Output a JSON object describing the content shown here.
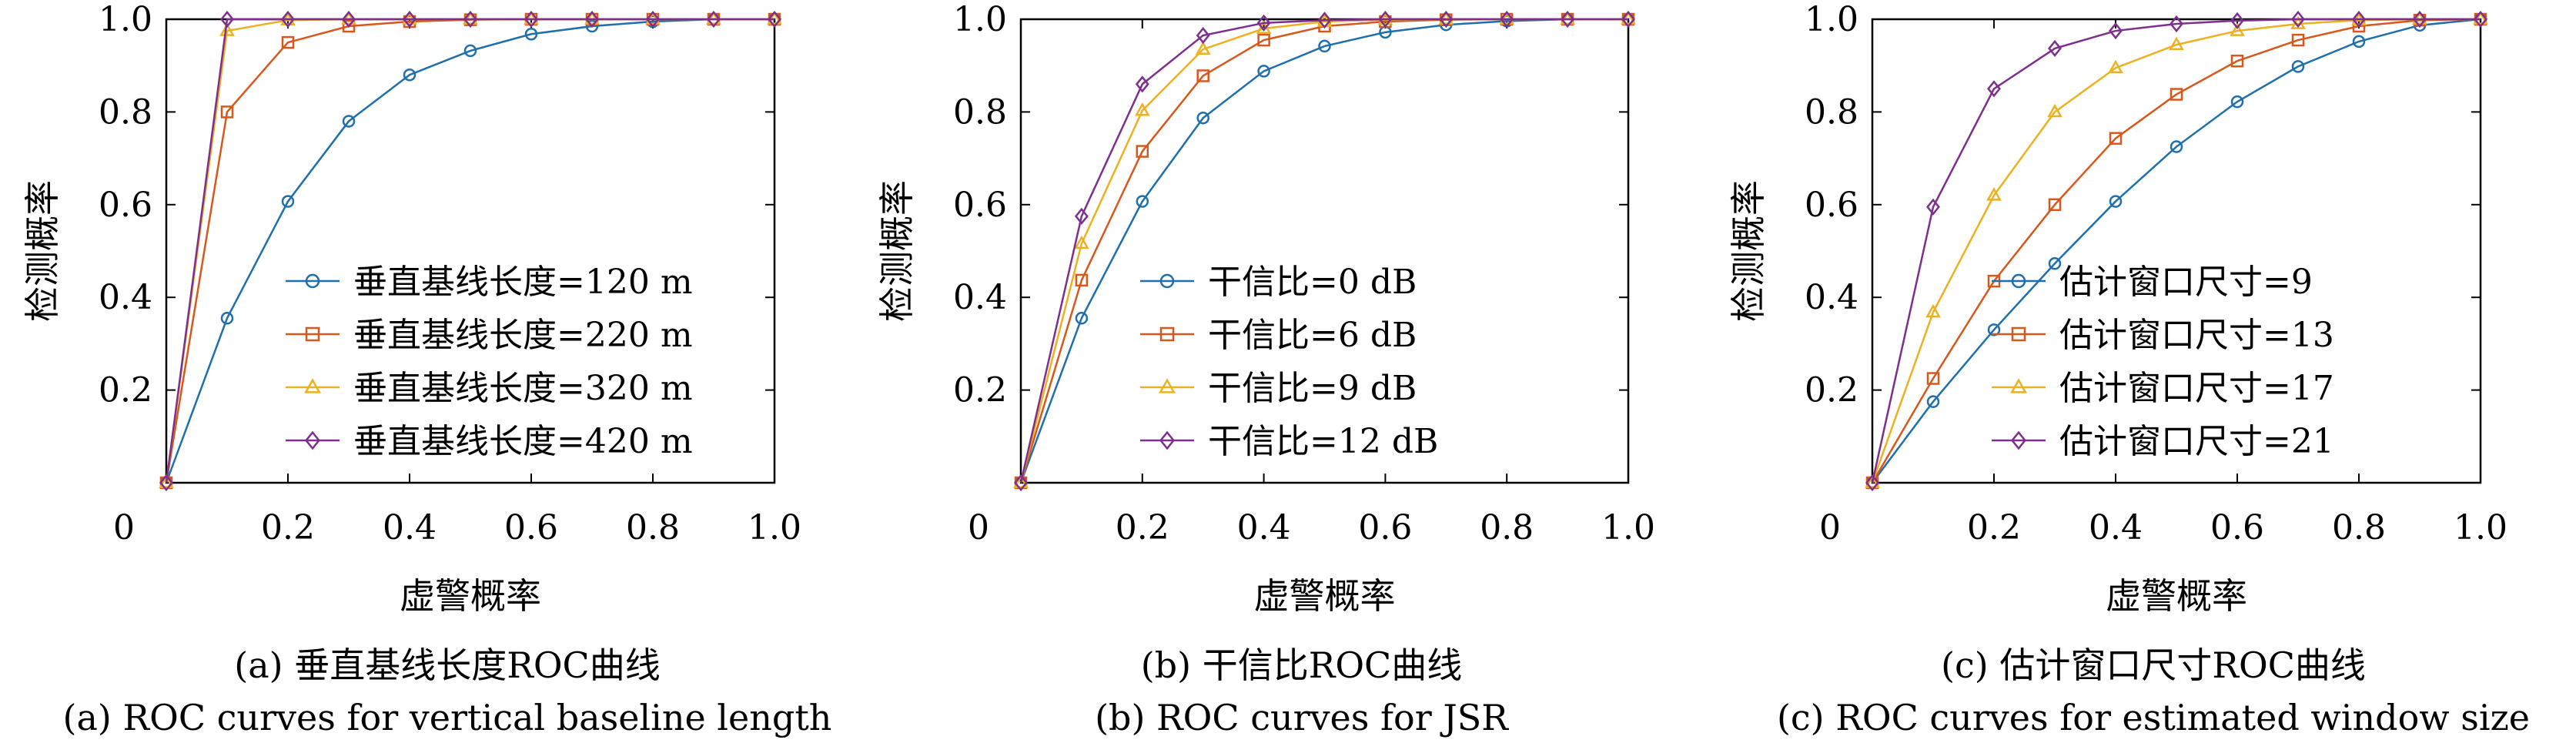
{
  "chart_data": [
    {
      "type": "line",
      "xlabel": "虚警概率",
      "ylabel": "检测概率",
      "xlim": [
        0,
        1
      ],
      "ylim": [
        0,
        1
      ],
      "xticks": [
        "0",
        "0.2",
        "0.4",
        "0.6",
        "0.8",
        "1.0"
      ],
      "yticks": [
        "0.2",
        "0.4",
        "0.6",
        "0.8",
        "1.0"
      ],
      "legend_position": "lower-right",
      "caption_cn": "(a) 垂直基线长度ROC曲线",
      "caption_en": "(a) ROC curves for vertical baseline length",
      "x": [
        0,
        0.1,
        0.2,
        0.3,
        0.4,
        0.5,
        0.6,
        0.7,
        0.8,
        0.9,
        1.0
      ],
      "series": [
        {
          "name": "垂直基线长度=120 m",
          "marker": "circle",
          "color": "#1f6fad",
          "values": [
            0,
            0.355,
            0.607,
            0.78,
            0.88,
            0.932,
            0.968,
            0.985,
            0.995,
            1.0,
            1.0
          ]
        },
        {
          "name": "垂直基线长度=220 m",
          "marker": "square",
          "color": "#d8581c",
          "values": [
            0,
            0.8,
            0.95,
            0.985,
            0.995,
            0.999,
            1.0,
            1.0,
            1.0,
            1.0,
            1.0
          ]
        },
        {
          "name": "垂直基线长度=320 m",
          "marker": "triangle",
          "color": "#edb120",
          "values": [
            0,
            0.975,
            0.998,
            1.0,
            1.0,
            1.0,
            1.0,
            1.0,
            1.0,
            1.0,
            1.0
          ]
        },
        {
          "name": "垂直基线长度=420 m",
          "marker": "diamond",
          "color": "#7e2f8e",
          "values": [
            0,
            1.0,
            1.0,
            1.0,
            1.0,
            1.0,
            1.0,
            1.0,
            1.0,
            1.0,
            1.0
          ]
        }
      ]
    },
    {
      "type": "line",
      "xlabel": "虚警概率",
      "ylabel": "检测概率",
      "xlim": [
        0,
        1
      ],
      "ylim": [
        0,
        1
      ],
      "xticks": [
        "0",
        "0.2",
        "0.4",
        "0.6",
        "0.8",
        "1.0"
      ],
      "yticks": [
        "0.2",
        "0.4",
        "0.6",
        "0.8",
        "1.0"
      ],
      "legend_position": "lower-right",
      "caption_cn": "(b) 干信比ROC曲线",
      "caption_en": "(b) ROC curves for JSR",
      "x": [
        0,
        0.1,
        0.2,
        0.3,
        0.4,
        0.5,
        0.6,
        0.7,
        0.8,
        0.9,
        1.0
      ],
      "series": [
        {
          "name": "干信比=0 dB",
          "marker": "circle",
          "color": "#1f6fad",
          "values": [
            0,
            0.355,
            0.607,
            0.787,
            0.888,
            0.942,
            0.972,
            0.988,
            0.996,
            1.0,
            1.0
          ]
        },
        {
          "name": "干信比=6 dB",
          "marker": "square",
          "color": "#d8581c",
          "values": [
            0,
            0.437,
            0.715,
            0.878,
            0.955,
            0.985,
            0.995,
            0.999,
            1.0,
            1.0,
            1.0
          ]
        },
        {
          "name": "干信比=9 dB",
          "marker": "triangle",
          "color": "#edb120",
          "values": [
            0,
            0.516,
            0.803,
            0.935,
            0.98,
            0.995,
            0.999,
            1.0,
            1.0,
            1.0,
            1.0
          ]
        },
        {
          "name": "干信比=12 dB",
          "marker": "diamond",
          "color": "#7e2f8e",
          "values": [
            0,
            0.575,
            0.86,
            0.965,
            0.992,
            0.998,
            1.0,
            1.0,
            1.0,
            1.0,
            1.0
          ]
        }
      ]
    },
    {
      "type": "line",
      "xlabel": "虚警概率",
      "ylabel": "检测概率",
      "xlim": [
        0,
        1
      ],
      "ylim": [
        0,
        1
      ],
      "xticks": [
        "0",
        "0.2",
        "0.4",
        "0.6",
        "0.8",
        "1.0"
      ],
      "yticks": [
        "0.2",
        "0.4",
        "0.6",
        "0.8",
        "1.0"
      ],
      "legend_position": "lower-right",
      "caption_cn": "(c) 估计窗口尺寸ROC曲线",
      "caption_en": "(c) ROC curves for estimated window size",
      "x": [
        0,
        0.1,
        0.2,
        0.3,
        0.4,
        0.5,
        0.6,
        0.7,
        0.8,
        0.9,
        1.0
      ],
      "series": [
        {
          "name": "估计窗口尺寸=9",
          "marker": "circle",
          "color": "#1f6fad",
          "values": [
            0,
            0.175,
            0.33,
            0.473,
            0.607,
            0.725,
            0.822,
            0.898,
            0.952,
            0.987,
            1.0
          ]
        },
        {
          "name": "估计窗口尺寸=13",
          "marker": "square",
          "color": "#d8581c",
          "values": [
            0,
            0.225,
            0.435,
            0.6,
            0.743,
            0.838,
            0.91,
            0.955,
            0.985,
            0.998,
            1.0
          ]
        },
        {
          "name": "估计窗口尺寸=17",
          "marker": "triangle",
          "color": "#edb120",
          "values": [
            0,
            0.368,
            0.62,
            0.8,
            0.895,
            0.945,
            0.975,
            0.99,
            0.998,
            1.0,
            1.0
          ]
        },
        {
          "name": "估计窗口尺寸=21",
          "marker": "diamond",
          "color": "#7e2f8e",
          "values": [
            0,
            0.595,
            0.85,
            0.937,
            0.975,
            0.99,
            0.997,
            1.0,
            1.0,
            1.0,
            1.0
          ]
        }
      ]
    }
  ]
}
